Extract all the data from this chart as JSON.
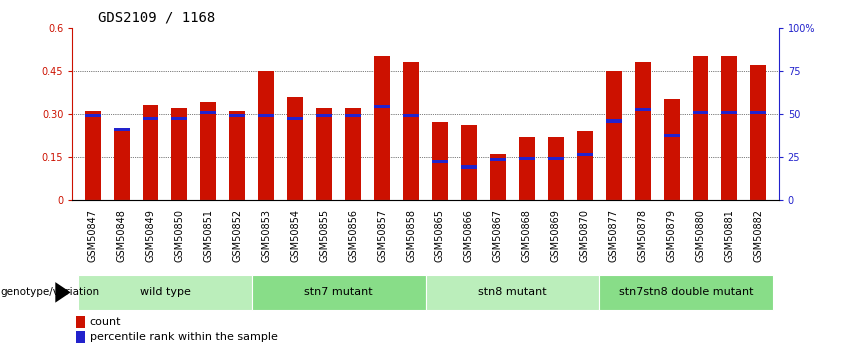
{
  "title": "GDS2109 / 1168",
  "samples": [
    "GSM50847",
    "GSM50848",
    "GSM50849",
    "GSM50850",
    "GSM50851",
    "GSM50852",
    "GSM50853",
    "GSM50854",
    "GSM50855",
    "GSM50856",
    "GSM50857",
    "GSM50858",
    "GSM50865",
    "GSM50866",
    "GSM50867",
    "GSM50868",
    "GSM50869",
    "GSM50870",
    "GSM50877",
    "GSM50878",
    "GSM50879",
    "GSM50880",
    "GSM50881",
    "GSM50882"
  ],
  "count_values": [
    0.31,
    0.25,
    0.33,
    0.32,
    0.34,
    0.31,
    0.45,
    0.36,
    0.32,
    0.32,
    0.5,
    0.48,
    0.27,
    0.26,
    0.16,
    0.22,
    0.22,
    0.24,
    0.45,
    0.48,
    0.35,
    0.5,
    0.5,
    0.47
  ],
  "percentile_values": [
    0.295,
    0.245,
    0.285,
    0.285,
    0.305,
    0.295,
    0.295,
    0.285,
    0.295,
    0.295,
    0.325,
    0.295,
    0.135,
    0.115,
    0.14,
    0.145,
    0.145,
    0.16,
    0.275,
    0.315,
    0.225,
    0.305,
    0.305,
    0.305
  ],
  "bar_color": "#cc1100",
  "percentile_color": "#2222cc",
  "groups": [
    {
      "label": "wild type",
      "start": 0,
      "end": 6,
      "color": "#bbeebb"
    },
    {
      "label": "stn7 mutant",
      "start": 6,
      "end": 12,
      "color": "#88dd88"
    },
    {
      "label": "stn8 mutant",
      "start": 12,
      "end": 18,
      "color": "#bbeebb"
    },
    {
      "label": "stn7stn8 double mutant",
      "start": 18,
      "end": 24,
      "color": "#88dd88"
    }
  ],
  "ylim_left": [
    0,
    0.6
  ],
  "ylim_right": [
    0,
    100
  ],
  "yticks_left": [
    0,
    0.15,
    0.3,
    0.45,
    0.6
  ],
  "yticks_right": [
    0,
    25,
    50,
    75,
    100
  ],
  "ytick_labels_left": [
    "0",
    "0.15",
    "0.30",
    "0.45",
    "0.6"
  ],
  "ytick_labels_right": [
    "0",
    "25",
    "50",
    "75",
    "100%"
  ],
  "bar_width": 0.55,
  "genotype_label": "genotype/variation",
  "legend_count": "count",
  "legend_percentile": "percentile rank within the sample",
  "title_fontsize": 10,
  "tick_fontsize": 7,
  "group_label_fontsize": 8,
  "legend_fontsize": 8
}
